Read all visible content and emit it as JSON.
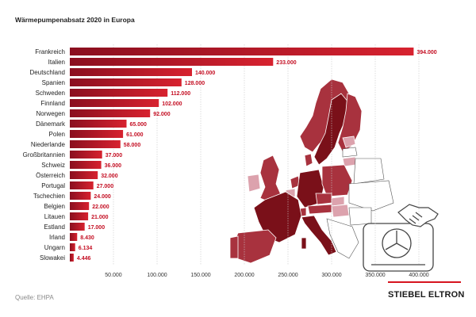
{
  "chart_data": {
    "type": "bar",
    "orientation": "horizontal",
    "title": "Wärmepumpenabsatz 2020 in Europa",
    "categories": [
      "Frankreich",
      "Italien",
      "Deutschland",
      "Spanien",
      "Schweden",
      "Finnland",
      "Norwegen",
      "Dänemark",
      "Polen",
      "Niederlande",
      "Großbritannien",
      "Schweiz",
      "Österreich",
      "Portugal",
      "Tschechien",
      "Belgien",
      "Litauen",
      "Estland",
      "Irland",
      "Ungarn",
      "Slowakei"
    ],
    "values": [
      394000,
      233000,
      140000,
      128000,
      112000,
      102000,
      92000,
      65000,
      61000,
      58000,
      37000,
      36000,
      32000,
      27000,
      24000,
      22000,
      21000,
      17000,
      8430,
      6134,
      4446
    ],
    "value_labels": [
      "394.000",
      "233.000",
      "140.000",
      "128.000",
      "112.000",
      "102.000",
      "92.000",
      "65.000",
      "61.000",
      "58.000",
      "37.000",
      "36.000",
      "32.000",
      "27.000",
      "24.000",
      "22.000",
      "21.000",
      "17.000",
      "8.430",
      "6.134",
      "4.446"
    ],
    "xlim": [
      0,
      400000
    ],
    "xticks": [
      50000,
      100000,
      150000,
      200000,
      250000,
      300000,
      350000,
      400000
    ],
    "xtick_labels": [
      "50.000",
      "100.000",
      "150.000",
      "200.000",
      "250.000",
      "300.000",
      "350.000",
      "400.000"
    ],
    "grid": true,
    "colors": {
      "bar_dark": "#8a0f1f",
      "bar_light": "#d7222f",
      "value_text": "#c40e22"
    }
  },
  "source": "Quelle: EHPA",
  "brand": {
    "name": "STIEBEL ELTRON",
    "accent": "#d7141f"
  },
  "map_colors": {
    "dark": "#7a1019",
    "mid": "#a8323e",
    "light": "#dca2ad",
    "empty": "#ffffff"
  }
}
